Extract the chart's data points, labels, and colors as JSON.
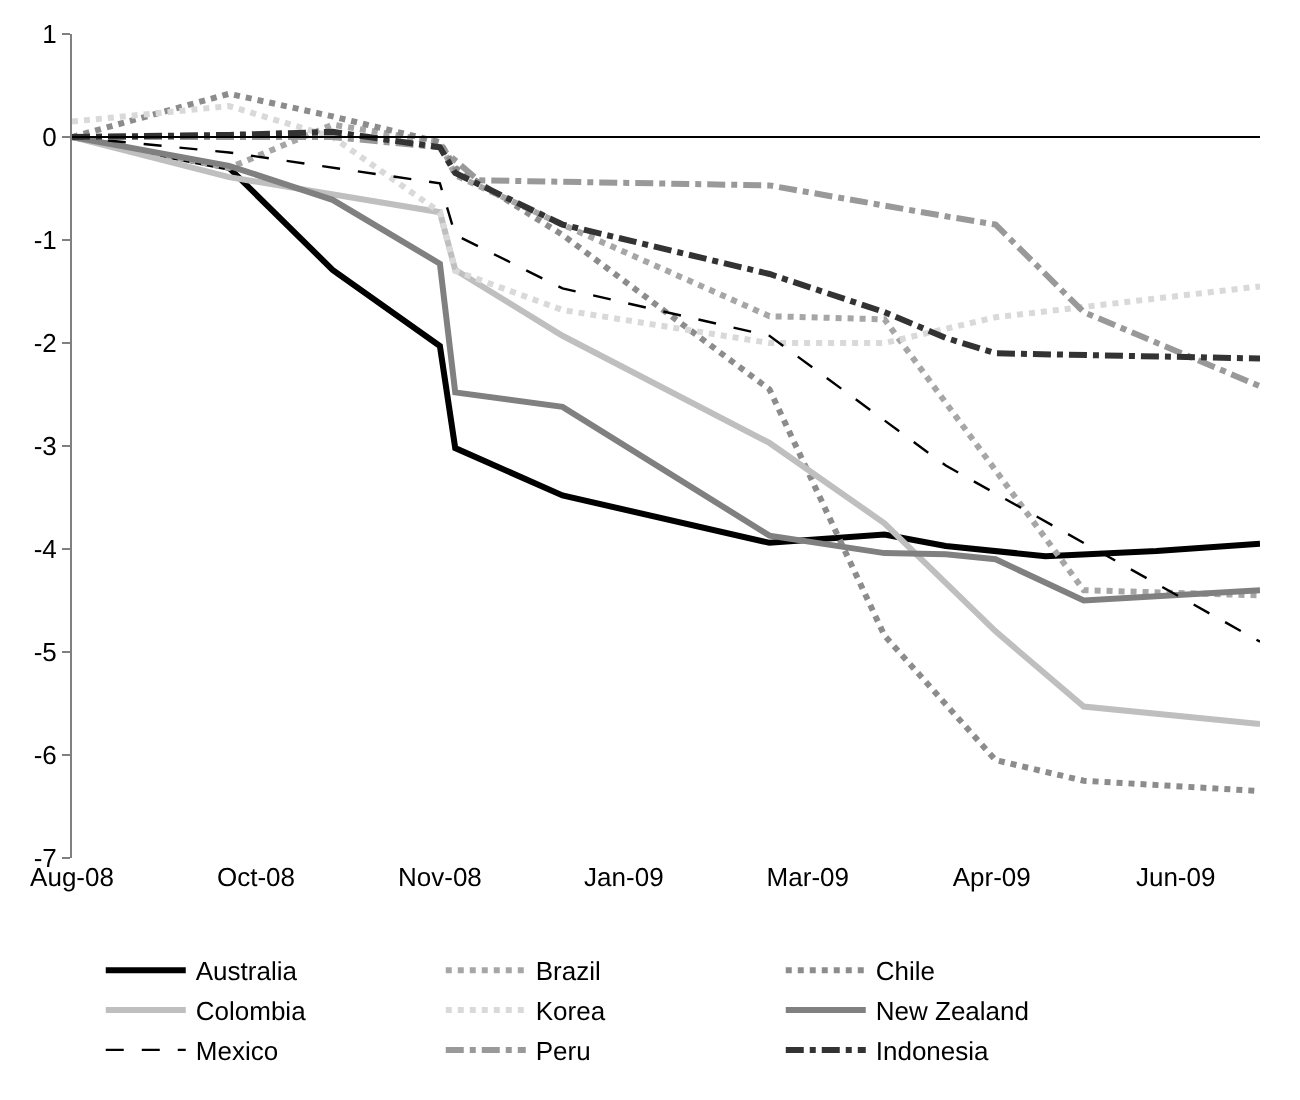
{
  "chart_data": {
    "type": "line",
    "xlim": [
      "2008-08-25",
      "2009-07-01"
    ],
    "xticks": [
      {
        "value": "2008-08-25",
        "label": "Aug-08"
      },
      {
        "value": "2008-10-12",
        "label": "Oct-08"
      },
      {
        "value": "2008-11-29",
        "label": "Nov-08"
      },
      {
        "value": "2009-01-16",
        "label": "Jan-09"
      },
      {
        "value": "2009-03-05",
        "label": "Mar-09"
      },
      {
        "value": "2009-04-22",
        "label": "Apr-09"
      },
      {
        "value": "2009-06-09",
        "label": "Jun-09"
      }
    ],
    "ylim": [
      -7,
      1
    ],
    "yticks": [
      -7,
      -6,
      -5,
      -4,
      -3,
      -2,
      -1,
      0,
      1
    ],
    "legend": "bottom",
    "ref_lines": [
      {
        "axis": "y",
        "value": 0,
        "color": "#000000",
        "line_style": "solid"
      }
    ],
    "series": [
      {
        "name": "Australia",
        "color": "#000000",
        "line_style": "solid",
        "x": [
          "2008-08-25",
          "2008-10-05",
          "2008-11-01",
          "2008-11-29",
          "2008-12-03",
          "2008-12-31",
          "2009-02-23",
          "2009-03-25",
          "2009-04-10",
          "2009-05-06",
          "2009-06-04",
          "2009-07-01"
        ],
        "values": [
          0,
          -0.3,
          -1.29,
          -2.03,
          -3.02,
          -3.48,
          -3.94,
          -3.86,
          -3.97,
          -4.07,
          -4.02,
          -3.95
        ]
      },
      {
        "name": "Brazil",
        "color": "#a6a6a6",
        "line_style": "dotted",
        "x": [
          "2008-08-25",
          "2008-10-05",
          "2008-11-01",
          "2008-11-29",
          "2008-12-03",
          "2008-12-31",
          "2009-02-23",
          "2009-03-25",
          "2009-04-10",
          "2009-05-16",
          "2009-07-01"
        ],
        "values": [
          0,
          -0.3,
          0.12,
          -0.05,
          -0.37,
          -0.85,
          -1.74,
          -1.77,
          -2.58,
          -4.4,
          -4.45
        ]
      },
      {
        "name": "Chile",
        "color": "#8c8c8c",
        "line_style": "dotted",
        "x": [
          "2008-08-25",
          "2008-10-05",
          "2008-11-01",
          "2008-11-29",
          "2008-12-03",
          "2008-12-31",
          "2009-02-23",
          "2009-03-25",
          "2009-04-23",
          "2009-05-16",
          "2009-07-01"
        ],
        "values": [
          0,
          0.42,
          0.2,
          -0.05,
          -0.3,
          -0.95,
          -2.45,
          -4.84,
          -6.05,
          -6.25,
          -6.35
        ]
      },
      {
        "name": "Colombia",
        "color": "#bfbfbf",
        "line_style": "solid",
        "x": [
          "2008-08-25",
          "2008-10-05",
          "2008-11-29",
          "2008-12-03",
          "2008-12-31",
          "2009-02-23",
          "2009-03-25",
          "2009-04-23",
          "2009-05-16",
          "2009-07-01"
        ],
        "values": [
          0,
          -0.39,
          -0.73,
          -1.29,
          -1.93,
          -2.97,
          -3.75,
          -4.8,
          -5.53,
          -5.7
        ]
      },
      {
        "name": "Korea",
        "color": "#d9d9d9",
        "line_style": "dotted",
        "x": [
          "2008-08-25",
          "2008-10-05",
          "2008-11-01",
          "2008-11-29",
          "2008-12-03",
          "2008-12-31",
          "2009-02-23",
          "2009-03-25",
          "2009-04-23",
          "2009-07-01"
        ],
        "values": [
          0.15,
          0.3,
          0.0,
          -0.73,
          -1.3,
          -1.68,
          -2.0,
          -2.0,
          -1.75,
          -1.45
        ]
      },
      {
        "name": "New Zealand",
        "color": "#808080",
        "line_style": "solid",
        "x": [
          "2008-08-25",
          "2008-10-05",
          "2008-11-01",
          "2008-11-29",
          "2008-12-03",
          "2008-12-31",
          "2009-02-23",
          "2009-03-25",
          "2009-04-10",
          "2009-04-23",
          "2009-05-16",
          "2009-07-01"
        ],
        "values": [
          0,
          -0.28,
          -0.61,
          -1.23,
          -2.48,
          -2.62,
          -3.87,
          -4.04,
          -4.05,
          -4.1,
          -4.5,
          -4.4
        ]
      },
      {
        "name": "Mexico",
        "color": "#000000",
        "line_style": "dashed",
        "x": [
          "2008-08-25",
          "2008-10-05",
          "2008-11-29",
          "2008-12-03",
          "2008-12-31",
          "2009-02-23",
          "2009-04-10",
          "2009-07-01"
        ],
        "values": [
          0,
          -0.15,
          -0.45,
          -0.95,
          -1.47,
          -1.93,
          -3.19,
          -4.9
        ]
      },
      {
        "name": "Peru",
        "color": "#999999",
        "line_style": "dashdot",
        "x": [
          "2008-08-25",
          "2008-11-01",
          "2008-11-29",
          "2008-12-09",
          "2009-02-23",
          "2009-04-10",
          "2009-04-23",
          "2009-05-16",
          "2009-07-01"
        ],
        "values": [
          0,
          0,
          -0.1,
          -0.42,
          -0.47,
          -0.77,
          -0.85,
          -1.7,
          -2.42
        ]
      },
      {
        "name": "Indonesia",
        "color": "#333333",
        "line_style": "dashdot",
        "x": [
          "2008-08-25",
          "2008-10-05",
          "2008-11-01",
          "2008-11-29",
          "2008-12-03",
          "2008-12-31",
          "2009-02-23",
          "2009-03-25",
          "2009-04-10",
          "2009-04-23",
          "2009-07-01"
        ],
        "values": [
          0,
          0.02,
          0.05,
          -0.1,
          -0.35,
          -0.85,
          -1.33,
          -1.7,
          -1.95,
          -2.1,
          -2.15
        ]
      }
    ]
  }
}
